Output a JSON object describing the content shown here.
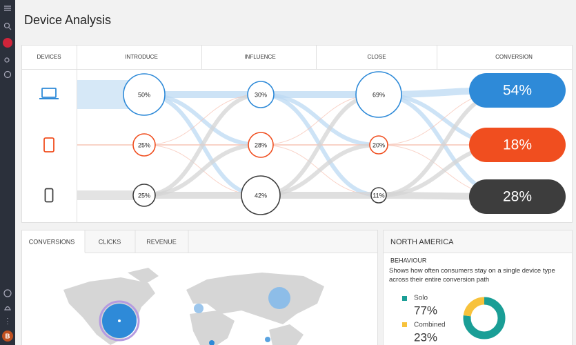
{
  "header": {
    "title": "Device Analysis"
  },
  "flow": {
    "columns": [
      "DEVICES",
      "INTRODUCE",
      "INFLUENCE",
      "CLOSE",
      "CONVERSION"
    ],
    "rows": [
      {
        "introduce": "50%",
        "influence": "30%",
        "close": "69%",
        "conversion": "54%"
      },
      {
        "introduce": "25%",
        "influence": "28%",
        "close": "20%",
        "conversion": "18%"
      },
      {
        "introduce": "25%",
        "influence": "42%",
        "close": "11%",
        "conversion": "28%"
      }
    ]
  },
  "tabs": [
    "CONVERSIONS",
    "CLICKS",
    "REVENUE"
  ],
  "panel": {
    "title": "NORTH AMERICA",
    "subtitle": "BEHAVIOUR",
    "description": "Shows how often consumers stay on a single device type across their entire conversion path",
    "legend": [
      {
        "label": "Solo",
        "value": "77%"
      },
      {
        "label": "Combined",
        "value": "23%"
      }
    ]
  },
  "sidebar": {
    "avatar": "B"
  }
}
